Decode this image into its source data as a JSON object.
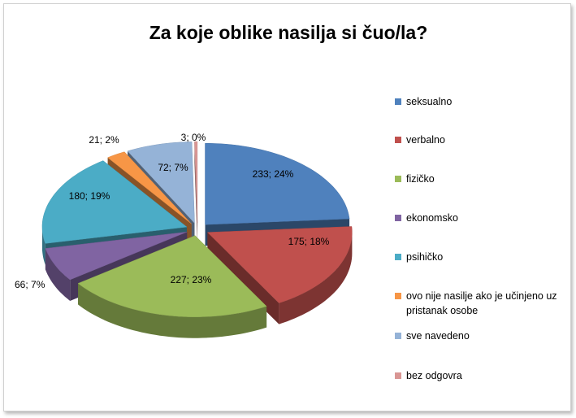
{
  "chart_data": {
    "type": "pie3d",
    "title": "Za koje oblike nasilja si čuo/la?",
    "categories": [
      "seksualno",
      "verbalno",
      "fizičko",
      "ekonomsko",
      "psihičko",
      "ovo nije nasilje ako je učinjeno uz pristanak osobe",
      "sve navedeno",
      "bez odgovra"
    ],
    "values": [
      233,
      175,
      227,
      66,
      180,
      21,
      72,
      3
    ],
    "value_labels": [
      "233; 24%",
      "175; 18%",
      "227; 23%",
      "66; 7%",
      "180; 19%",
      "21; 2%",
      "72; 7%",
      "3; 0%"
    ],
    "colors": [
      "#4f81bd",
      "#c0504d",
      "#9bbb59",
      "#8064a2",
      "#4bacc6",
      "#f79646",
      "#95b3d7",
      "#d99694"
    ],
    "legend": "right"
  }
}
